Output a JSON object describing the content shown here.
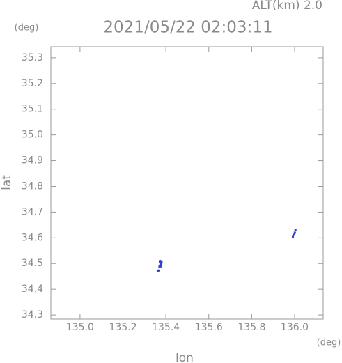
{
  "chart_data": {
    "type": "scatter",
    "title": "2021/05/22 02:03:11",
    "subtitle": "ALT(km) 2.0",
    "y_unit": "(deg)",
    "x_unit": "(deg)",
    "xlabel": "lon",
    "ylabel": "lat",
    "xlim": [
      134.864,
      136.133
    ],
    "ylim": [
      34.284,
      35.343
    ],
    "xticks": [
      {
        "value": 135,
        "label": "135.0"
      },
      135.2,
      135.4,
      135.6,
      135.8,
      {
        "value": 136,
        "label": "136.0"
      }
    ],
    "yticks": [
      34.3,
      34.4,
      34.5,
      34.6,
      34.7,
      34.8,
      34.9,
      {
        "value": 35,
        "label": "35.0"
      },
      35.1,
      35.2,
      35.3
    ],
    "series": [
      {
        "color": "#3040d0",
        "x": [
          135.372,
          135.375,
          135.378,
          135.38,
          135.374,
          135.377,
          135.37,
          135.366,
          135.362,
          135.373,
          135.379,
          135.992,
          135.997,
          136.001,
          136.004
        ],
        "y": [
          34.505,
          34.5,
          34.497,
          34.508,
          34.493,
          34.489,
          34.488,
          34.473,
          34.472,
          34.51,
          34.502,
          34.604,
          34.612,
          34.62,
          34.63
        ]
      }
    ]
  }
}
